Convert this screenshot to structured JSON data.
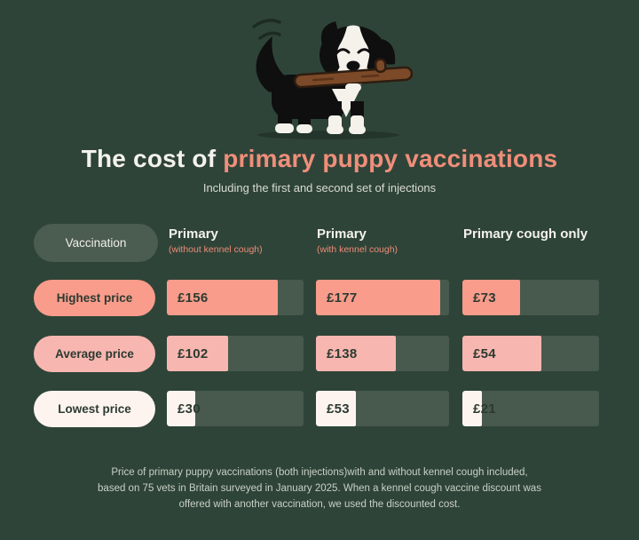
{
  "page": {
    "title_plain": "The cost of ",
    "title_accent": "primary puppy vaccinations",
    "subtitle": "Including the first and second set of injections"
  },
  "table": {
    "corner_label": "Vaccination",
    "columns": [
      {
        "title": "Primary",
        "subtitle": "(without kennel cough)"
      },
      {
        "title": "Primary",
        "subtitle": "(with kennel cough)"
      },
      {
        "title": "Primary cough only",
        "subtitle": ""
      }
    ],
    "rows": [
      {
        "name": "Highest price",
        "cells": [
          {
            "label": "£156",
            "value": 156,
            "fill_pct": 81
          },
          {
            "label": "£177",
            "value": 177,
            "fill_pct": 93
          },
          {
            "label": "£73",
            "value": 73,
            "fill_pct": 42
          }
        ]
      },
      {
        "name": "Average price",
        "cells": [
          {
            "label": "£102",
            "value": 102,
            "fill_pct": 45
          },
          {
            "label": "£138",
            "value": 138,
            "fill_pct": 60
          },
          {
            "label": "£54",
            "value": 54,
            "fill_pct": 58
          }
        ]
      },
      {
        "name": "Lowest price",
        "cells": [
          {
            "label": "£30",
            "value": 30,
            "fill_pct": 21
          },
          {
            "label": "£53",
            "value": 53,
            "fill_pct": 30
          },
          {
            "label": "£21",
            "value": 21,
            "fill_pct": 14
          }
        ]
      }
    ]
  },
  "footer": {
    "lines": [
      "Price of primary puppy vaccinations (both injections)with and without kennel cough included,",
      "based on 75 vets in Britain surveyed in January 2025. When a kennel cough vaccine discount was",
      "offered with another vaccination, we used the discounted cost."
    ]
  },
  "colors": {
    "background": "#2f4438",
    "bar_track": "#48594e",
    "highest_fill": "#f99c8b",
    "average_fill": "#f7b7b0",
    "lowest_fill": "#fdf4f0",
    "title_accent": "#ef8e7a",
    "white_text": "#f4f2ec",
    "dark_text": "#2c3a31",
    "footer_text": "#c9d0c6",
    "header_pill": "#4b5c51"
  },
  "chart_data": {
    "type": "bar",
    "title": "The cost of primary puppy vaccinations",
    "subtitle": "Including the first and second set of injections",
    "categories": [
      "Primary (without kennel cough)",
      "Primary (with kennel cough)",
      "Primary cough only"
    ],
    "series": [
      {
        "name": "Highest price",
        "values": [
          156,
          177,
          73
        ]
      },
      {
        "name": "Average price",
        "values": [
          102,
          138,
          54
        ]
      },
      {
        "name": "Lowest price",
        "values": [
          30,
          53,
          21
        ]
      }
    ],
    "unit": "GBP",
    "value_prefix": "£",
    "orientation": "horizontal",
    "legend_position": "left-row-pills",
    "grid": false,
    "note": "Price of primary puppy vaccinations (both injections)with and without kennel cough included, based on 75 vets in Britain surveyed in January 2025. When a kennel cough vaccine discount was offered with another vaccination, we used the discounted cost."
  }
}
